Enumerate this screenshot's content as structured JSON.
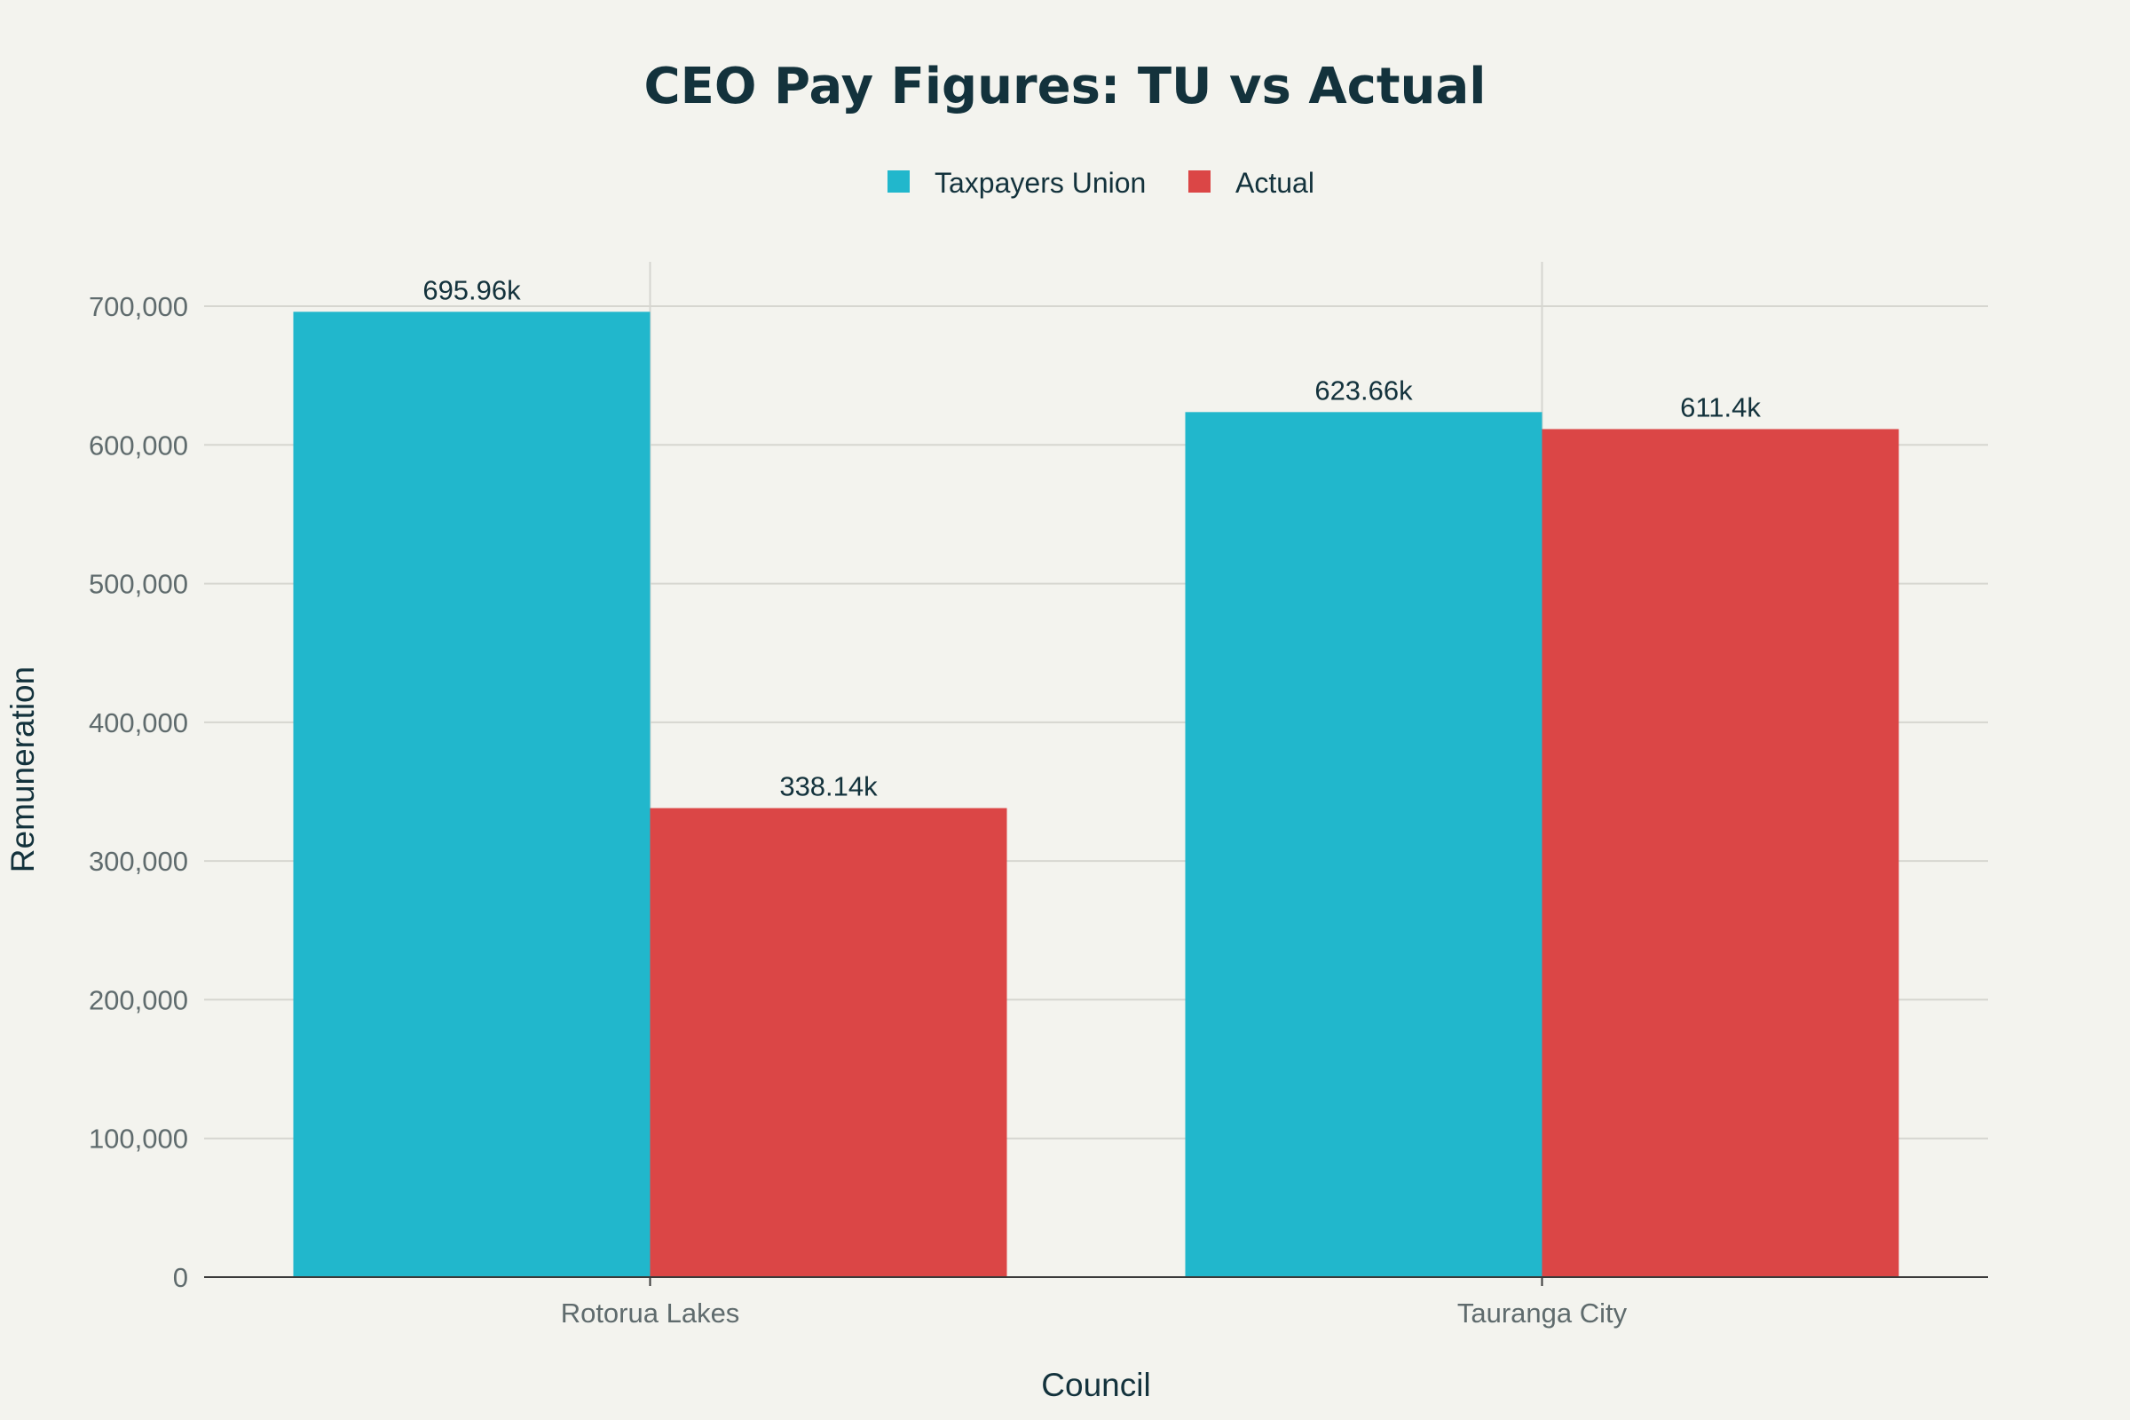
{
  "chart_data": {
    "type": "bar",
    "title": "CEO Pay Figures: TU vs Actual",
    "xlabel": "Council",
    "ylabel": "Remuneration",
    "categories": [
      "Rotorua Lakes",
      "Tauranga City"
    ],
    "series": [
      {
        "name": "Taxpayers Union",
        "color": "#21b7cc",
        "values": [
          695960,
          623660
        ],
        "labels": [
          "695.96k",
          "623.66k"
        ]
      },
      {
        "name": "Actual",
        "color": "#db4646",
        "values": [
          338140,
          611400
        ],
        "labels": [
          "338.14k",
          "611.4k"
        ]
      }
    ],
    "ylim": [
      0,
      732000
    ],
    "yticks": [
      0,
      100000,
      200000,
      300000,
      400000,
      500000,
      600000,
      700000
    ],
    "ytick_labels": [
      "0",
      "100,000",
      "200,000",
      "300,000",
      "400,000",
      "500,000",
      "600,000",
      "700,000"
    ],
    "grid": true,
    "legend_position": "top-center"
  }
}
